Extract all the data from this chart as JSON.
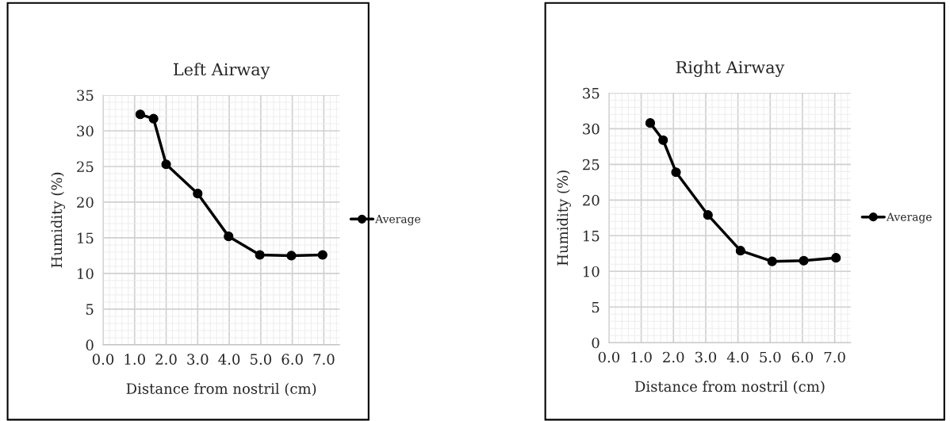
{
  "chart_data": [
    {
      "type": "line",
      "title": "Left Airway",
      "xlabel": "Distance from nostril (cm)",
      "ylabel": "Humidity (%)",
      "x": [
        1.18,
        1.6,
        2.0,
        3.0,
        3.98,
        4.97,
        5.97,
        6.96
      ],
      "series": [
        {
          "name": "Average",
          "color": "#000000",
          "values": [
            32.3,
            31.7,
            25.3,
            21.2,
            15.2,
            12.6,
            12.5,
            12.6
          ]
        }
      ],
      "xlim": [
        0,
        7.5
      ],
      "xticks": [
        {
          "value": 0,
          "label": "0.0"
        },
        {
          "value": 1,
          "label": "1.0"
        },
        {
          "value": 2,
          "label": "2.0"
        },
        {
          "value": 3,
          "label": "3.0"
        },
        {
          "value": 4,
          "label": "4.0"
        },
        {
          "value": 5,
          "label": "5.0"
        },
        {
          "value": 6,
          "label": "6.0"
        },
        {
          "value": 7,
          "label": "7.0"
        }
      ],
      "ylim": [
        0,
        35
      ],
      "yticks": [
        0,
        5,
        10,
        15,
        20,
        25,
        30,
        35
      ],
      "grid": true,
      "legend": "right",
      "marker": "circle",
      "line_style": "solid"
    },
    {
      "type": "line",
      "title": "Right Airway",
      "xlabel": "Distance from nostril (cm)",
      "ylabel": "Humidity (%)",
      "x": [
        1.28,
        1.68,
        2.08,
        3.07,
        4.08,
        5.06,
        6.04,
        7.04
      ],
      "series": [
        {
          "name": "Average",
          "color": "#000000",
          "values": [
            30.8,
            28.4,
            23.9,
            17.9,
            12.9,
            11.4,
            11.5,
            11.9
          ]
        }
      ],
      "xlim": [
        0,
        7.5
      ],
      "xticks": [
        {
          "value": 0,
          "label": "0.0"
        },
        {
          "value": 1,
          "label": "1.0"
        },
        {
          "value": 2,
          "label": "2.0"
        },
        {
          "value": 3,
          "label": "3.0"
        },
        {
          "value": 4,
          "label": "4.0"
        },
        {
          "value": 5,
          "label": "5.0"
        },
        {
          "value": 6,
          "label": "6.0"
        },
        {
          "value": 7,
          "label": "7.0"
        }
      ],
      "ylim": [
        0,
        35
      ],
      "yticks": [
        0,
        5,
        10,
        15,
        20,
        25,
        30,
        35
      ],
      "grid": true,
      "legend": "right",
      "marker": "circle",
      "line_style": "solid"
    }
  ]
}
